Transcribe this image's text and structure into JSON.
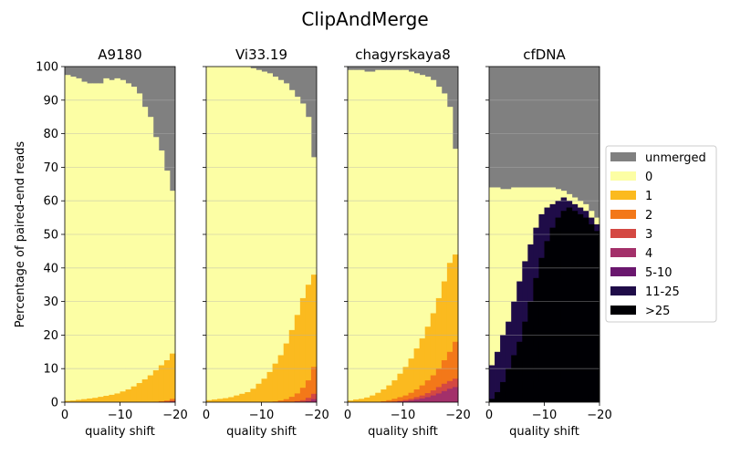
{
  "chart_data": {
    "type": "stacked-bar",
    "title": "ClipAndMerge",
    "ylabel": "Percentage of paired-end reads",
    "xlabel": "quality shift",
    "ylim": [
      0,
      100
    ],
    "yticks": [
      0,
      10,
      20,
      30,
      40,
      50,
      60,
      70,
      80,
      90,
      100
    ],
    "xlim": [
      0,
      -20
    ],
    "xticks": [
      0,
      -10,
      -20
    ],
    "xtick_labels": [
      "0",
      "−10",
      "−20"
    ],
    "grid": "horizontal",
    "legend_position": "right",
    "categories": [
      "unmerged",
      "0",
      "1",
      "2",
      "3",
      "4",
      "5-10",
      "11-25",
      ">25"
    ],
    "colors": [
      "#808080",
      "#fcfea4",
      "#fbba1f",
      "#f37819",
      "#d44842",
      "#a3306a",
      "#6a176e",
      "#1f0c48",
      "#000004"
    ],
    "panels": [
      {
        "title": "A9180",
        "merged_total": [
          97.5,
          97,
          96.5,
          95.5,
          95,
          95,
          95,
          96.5,
          96,
          96.5,
          96,
          95,
          94,
          92,
          88,
          85,
          79,
          75,
          69,
          63
        ],
        "stacks": [
          [
            0.4,
            0.5,
            0.7,
            0.9,
            1.1,
            1.3,
            1.6,
            1.9,
            2.2,
            2.6,
            3.2,
            3.8,
            4.7,
            5.7,
            6.8,
            8.0,
            9.5,
            11.0,
            12.5,
            14.5
          ],
          [
            0,
            0,
            0,
            0,
            0,
            0,
            0,
            0,
            0,
            0,
            0,
            0,
            0,
            0,
            0,
            0,
            0.1,
            0.3,
            0.5,
            1.0
          ],
          [
            0,
            0,
            0,
            0,
            0,
            0,
            0,
            0,
            0,
            0,
            0,
            0,
            0,
            0,
            0,
            0,
            0,
            0,
            0.2,
            0.4
          ],
          [
            0,
            0,
            0,
            0,
            0,
            0,
            0,
            0,
            0,
            0,
            0,
            0,
            0,
            0,
            0,
            0,
            0,
            0,
            0,
            0.2
          ]
        ]
      },
      {
        "title": "Vi33.19",
        "merged_total": [
          100,
          100,
          100,
          100,
          100,
          100,
          100,
          100,
          99.5,
          99,
          98.5,
          98,
          97,
          96,
          95,
          93,
          91,
          89,
          85,
          73
        ],
        "stacks": [
          [
            0.6,
            0.8,
            1.0,
            1.2,
            1.5,
            2.0,
            2.5,
            3.0,
            4.0,
            5.5,
            7.0,
            9.0,
            11.5,
            14.0,
            17.5,
            21.5,
            26.0,
            31.0,
            35.0,
            38.0
          ],
          [
            0,
            0,
            0,
            0,
            0,
            0,
            0,
            0,
            0,
            0,
            0,
            0,
            0.2,
            0.5,
            0.9,
            1.6,
            2.6,
            4.3,
            6.5,
            10.5
          ],
          [
            0,
            0,
            0,
            0,
            0,
            0,
            0,
            0,
            0,
            0,
            0,
            0,
            0,
            0,
            0,
            0,
            0.3,
            0.6,
            1.3,
            2.5
          ],
          [
            0,
            0,
            0,
            0,
            0,
            0,
            0,
            0,
            0,
            0,
            0,
            0,
            0,
            0,
            0,
            0,
            0,
            0,
            0.3,
            0.9
          ]
        ]
      },
      {
        "title": "chagyrskaya8",
        "merged_total": [
          99,
          99,
          99,
          98.5,
          98.5,
          99,
          99,
          99,
          99,
          99,
          99,
          98.5,
          98,
          97.5,
          97,
          96,
          94,
          92,
          88,
          75.5
        ],
        "stacks": [
          [
            0.5,
            0.8,
            1.0,
            1.4,
            2.0,
            2.8,
            3.8,
            5.0,
            6.5,
            8.5,
            10.5,
            13.0,
            16.0,
            19.0,
            22.5,
            26.5,
            31.0,
            36.0,
            41.5,
            44.0
          ],
          [
            0,
            0,
            0,
            0,
            0,
            0,
            0.3,
            0.6,
            1.0,
            1.5,
            2.0,
            2.8,
            3.8,
            5.0,
            6.5,
            8.0,
            10.0,
            12.5,
            15.0,
            18.0
          ],
          [
            0,
            0,
            0,
            0,
            0,
            0,
            0,
            0,
            0.2,
            0.4,
            0.7,
            1.0,
            1.5,
            2.0,
            2.7,
            3.5,
            4.5,
            5.5,
            6.3,
            7.0
          ],
          [
            0,
            0,
            0,
            0,
            0,
            0,
            0,
            0,
            0,
            0.2,
            0.3,
            0.5,
            0.8,
            1.1,
            1.5,
            2.0,
            2.6,
            3.3,
            4.0,
            4.5
          ]
        ]
      },
      {
        "title": "cfDNA",
        "merged_total": [
          64,
          64,
          63.5,
          63.5,
          64,
          64,
          64,
          64,
          64,
          64,
          64,
          64,
          63.5,
          63,
          62,
          61,
          60,
          59,
          57,
          55
        ],
        "stacks": [
          [
            0,
            0,
            0,
            0,
            0,
            0,
            0,
            0,
            0,
            0,
            0,
            0,
            0,
            0,
            0,
            0,
            0,
            0,
            0,
            0
          ],
          [
            0,
            0,
            0,
            0,
            0,
            0,
            0,
            0,
            0,
            0,
            0,
            0,
            0,
            0,
            0,
            0,
            0,
            0,
            0,
            0
          ],
          [
            0,
            0,
            0,
            0,
            0,
            0,
            0,
            0,
            0,
            0,
            0,
            0,
            0,
            0,
            0,
            0,
            0,
            0,
            0,
            0
          ],
          [
            0,
            0,
            0,
            0,
            0,
            0,
            0,
            0,
            0,
            0,
            0,
            0,
            0,
            0,
            0,
            0,
            0,
            0,
            0,
            0
          ]
        ],
        "detail": [
          [
            0,
            0,
            0,
            0,
            0,
            0,
            0,
            0,
            0,
            0,
            0,
            0,
            0,
            0,
            0,
            0,
            0,
            0,
            0,
            0
          ],
          [
            11,
            15,
            20,
            24,
            30,
            36,
            42,
            47,
            52,
            56,
            58,
            59,
            60,
            61,
            60,
            59,
            58,
            57,
            55,
            53
          ],
          [
            1,
            3,
            6,
            10,
            14,
            18,
            24,
            30,
            37,
            43,
            48,
            52,
            55,
            57,
            58,
            57,
            56,
            55,
            53,
            51
          ],
          [
            0.3,
            0.8,
            1.5,
            3,
            5,
            8,
            12,
            17,
            23,
            29,
            36,
            42,
            48,
            52,
            54,
            54,
            54,
            53,
            51,
            49
          ],
          [
            0,
            0.2,
            0.5,
            1,
            2,
            3.5,
            6,
            9,
            13,
            18,
            24,
            30,
            37,
            43,
            47,
            49,
            50,
            49,
            48,
            47
          ],
          [
            0,
            0,
            0.2,
            0.4,
            0.8,
            1.5,
            2.5,
            4,
            6,
            9,
            13,
            17,
            23,
            29,
            35,
            40,
            43,
            44,
            44,
            43
          ],
          [
            0,
            0,
            0,
            0,
            0,
            0.2,
            0.4,
            0.8,
            1.4,
            2.2,
            3.5,
            5,
            7,
            9,
            11,
            13,
            15,
            17,
            15,
            9
          ],
          [
            0,
            0,
            0,
            0,
            0,
            0,
            0,
            0,
            0,
            0,
            0,
            0,
            0,
            0,
            0,
            0.2,
            0.5,
            1,
            2,
            4
          ]
        ]
      }
    ]
  }
}
